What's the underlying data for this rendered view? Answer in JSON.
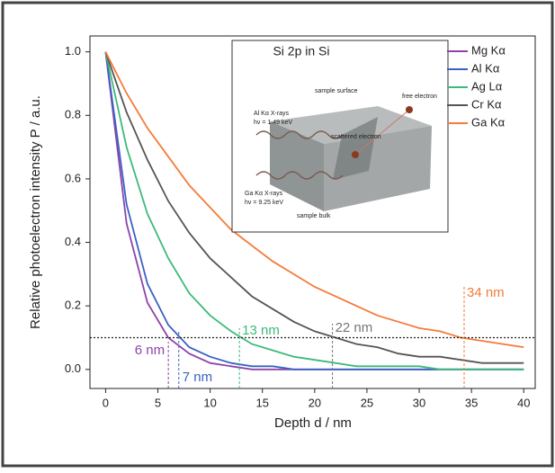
{
  "chart_data": {
    "type": "line",
    "x_label": "Depth d / nm",
    "y_label": "Relative photoelectron intensity P / a.u.",
    "x": [
      0,
      2,
      4,
      6,
      8,
      10,
      12,
      14,
      16,
      18,
      20,
      22,
      24,
      26,
      28,
      30,
      32,
      34,
      36,
      38,
      40
    ],
    "series": [
      {
        "name": "Mg Kα",
        "color": "#8e44a8",
        "values": [
          1,
          0.46,
          0.21,
          0.1,
          0.05,
          0.02,
          0.01,
          0,
          0,
          0,
          0,
          0,
          0,
          0,
          0,
          0,
          0,
          0,
          0,
          0,
          0
        ]
      },
      {
        "name": "Al Kα",
        "color": "#3a62c4",
        "values": [
          1,
          0.52,
          0.27,
          0.14,
          0.07,
          0.04,
          0.02,
          0.01,
          0.01,
          0,
          0,
          0,
          0,
          0,
          0,
          0,
          0,
          0,
          0,
          0,
          0
        ]
      },
      {
        "name": "Ag Lα",
        "color": "#3dba7a",
        "values": [
          1,
          0.7,
          0.49,
          0.35,
          0.24,
          0.17,
          0.12,
          0.08,
          0.06,
          0.04,
          0.03,
          0.02,
          0.01,
          0.01,
          0.01,
          0.01,
          0,
          0,
          0,
          0,
          0
        ]
      },
      {
        "name": "Cr Kα",
        "color": "#555555",
        "values": [
          1,
          0.81,
          0.66,
          0.53,
          0.43,
          0.35,
          0.29,
          0.23,
          0.19,
          0.15,
          0.12,
          0.1,
          0.08,
          0.07,
          0.05,
          0.04,
          0.04,
          0.03,
          0.02,
          0.02,
          0.02
        ]
      },
      {
        "name": "Ga Kα",
        "color": "#f47b3a",
        "values": [
          1,
          0.87,
          0.76,
          0.67,
          0.58,
          0.51,
          0.44,
          0.39,
          0.34,
          0.3,
          0.26,
          0.23,
          0.2,
          0.17,
          0.15,
          0.13,
          0.12,
          0.1,
          0.09,
          0.08,
          0.07
        ]
      }
    ],
    "xlim": [
      -1.5,
      41.1
    ],
    "ylim": [
      -0.06,
      1.05
    ],
    "xticks": [
      0,
      5,
      10,
      15,
      20,
      25,
      30,
      35,
      40
    ],
    "yticks": [
      {
        "value": 0,
        "label": "0.0"
      },
      0.2,
      0.4,
      0.6,
      0.8,
      {
        "value": 1,
        "label": "1.0"
      }
    ],
    "threshold": 0.1,
    "annotations": [
      {
        "text": "6 nm",
        "x": 6,
        "color": "#8e44a8"
      },
      {
        "text": "7 nm",
        "x": 7,
        "color": "#3a62c4"
      },
      {
        "text": "13 nm",
        "x": 12.8,
        "color": "#3dba7a"
      },
      {
        "text": "22 nm",
        "x": 21.7,
        "color": "#777777"
      },
      {
        "text": "34 nm",
        "x": 34.3,
        "color": "#f47b3a"
      }
    ],
    "legend": "upper right"
  },
  "inset": {
    "title": "Si 2p in Si",
    "labels": [
      "sample surface",
      "free electron",
      "Al Kα X-rays",
      "hν = 1.49 keV",
      "scattered electron",
      "Ga Kα X-rays",
      "hν = 9.25 keV",
      "sample bulk"
    ]
  }
}
